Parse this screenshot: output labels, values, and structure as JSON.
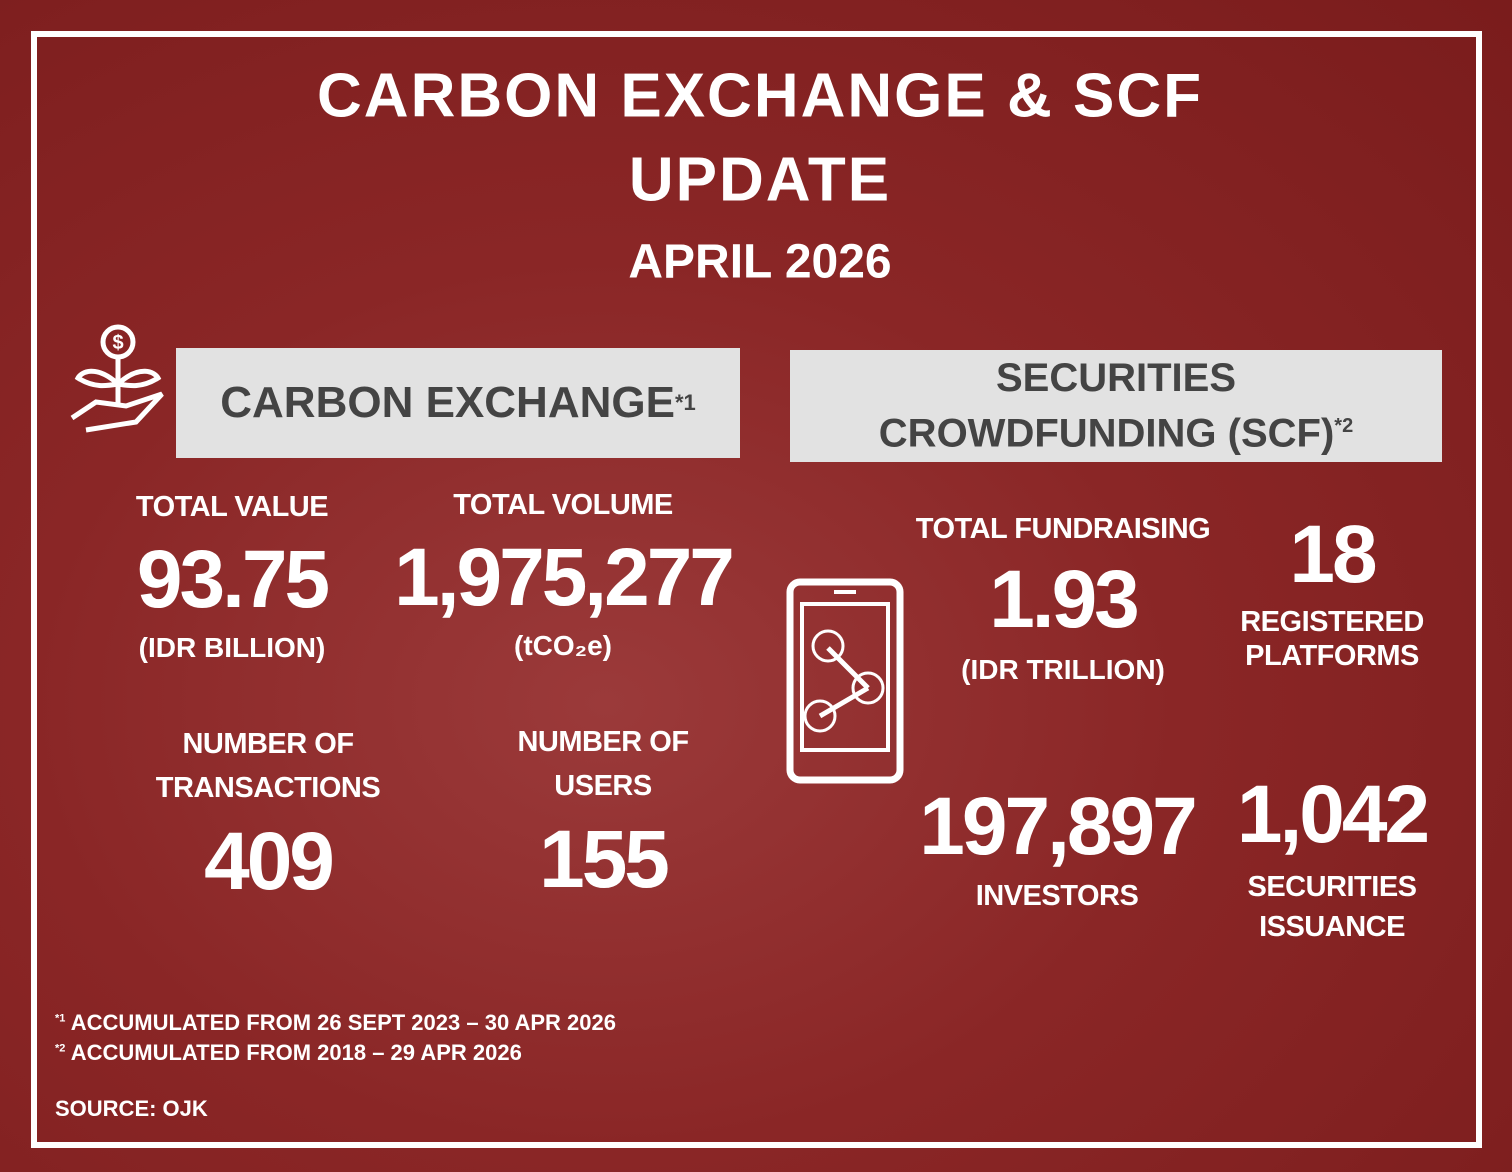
{
  "header": {
    "title_lines": [
      "CARBON EXCHANGE & SCF",
      "UPDATE"
    ],
    "date": "APRIL 2026"
  },
  "carbon_exchange": {
    "heading": "CARBON EXCHANGE",
    "note_mark": "*1",
    "stats": [
      {
        "label": [
          "TOTAL VALUE"
        ],
        "value": "93.75",
        "unit": "(IDR BILLION)"
      },
      {
        "label": [
          "TOTAL VOLUME"
        ],
        "value": "1,975,277",
        "unit": "(tCO₂e)"
      },
      {
        "label": [
          "NUMBER OF",
          "TRANSACTIONS"
        ],
        "value": "409"
      },
      {
        "label": [
          "NUMBER OF",
          "USERS"
        ],
        "value": "155"
      }
    ]
  },
  "scf": {
    "heading": [
      "SECURITIES",
      "CROWDFUNDING (SCF)"
    ],
    "note_mark": "*2",
    "stats": [
      {
        "label": [
          "TOTAL FUNDRAISING"
        ],
        "value": "1.93",
        "unit": "(IDR TRILLION)"
      },
      {
        "value": "18",
        "label": [
          "REGISTERED",
          "PLATFORMS"
        ]
      },
      {
        "value": "197,897",
        "label": [
          "INVESTORS"
        ]
      },
      {
        "value": "1,042",
        "label": [
          "SECURITIES",
          "ISSUANCE"
        ]
      }
    ]
  },
  "footnotes": [
    {
      "mark": "*1",
      "text": "ACCUMULATED FROM 26 SEPT 2023 – 30 APR 2026"
    },
    {
      "mark": "*2",
      "text": "ACCUMULATED FROM 2018 – 29 APR 2026"
    }
  ],
  "source": "SOURCE: OJK"
}
